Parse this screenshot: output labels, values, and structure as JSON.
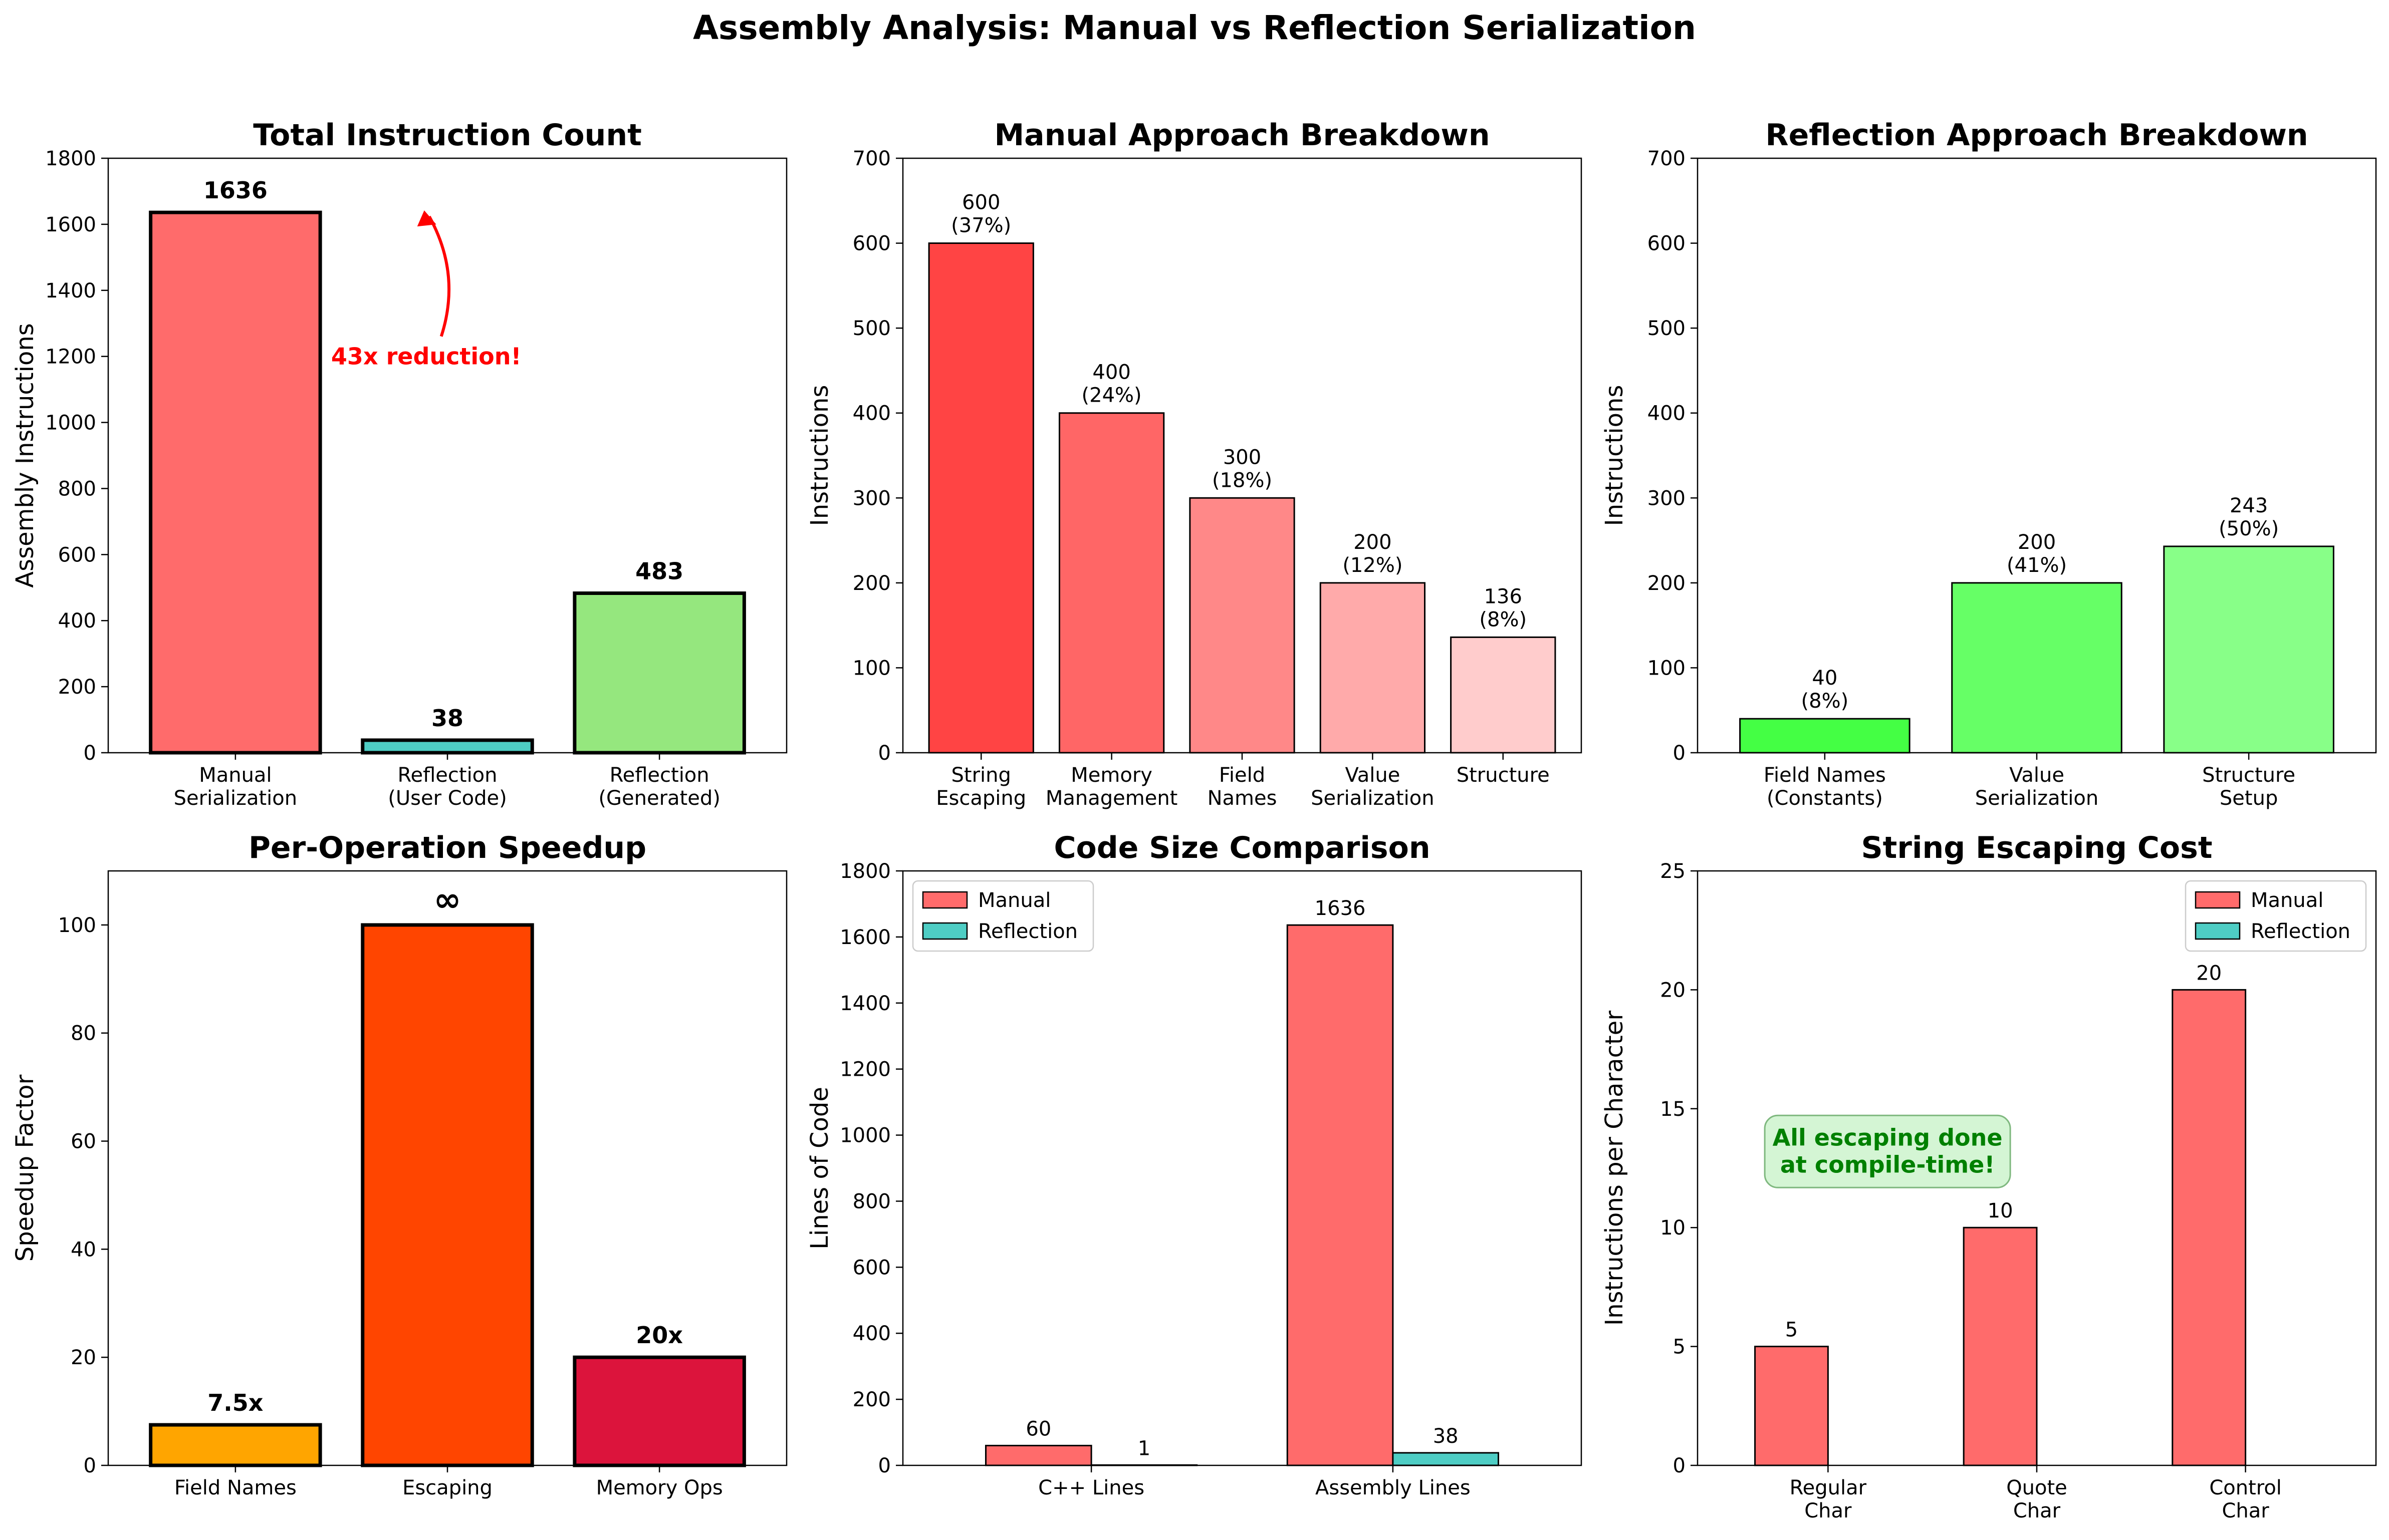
{
  "suptitle": "Assembly Analysis: Manual vs Reflection Serialization",
  "chart_data": [
    {
      "id": "total",
      "type": "bar",
      "title": "Total Instruction Count",
      "ylabel": "Assembly Instructions",
      "ylim": [
        0,
        1800
      ],
      "yticks": [
        0,
        200,
        400,
        600,
        800,
        1000,
        1200,
        1400,
        1600,
        1800
      ],
      "categories": [
        [
          "Manual",
          "Serialization"
        ],
        [
          "Reflection",
          "(User Code)"
        ],
        [
          "Reflection",
          "(Generated)"
        ]
      ],
      "values": [
        1636,
        38,
        483
      ],
      "labels": [
        [
          "1636"
        ],
        [
          "38"
        ],
        [
          "483"
        ]
      ],
      "label_style": "bold",
      "colors": [
        "#ff6b6b",
        "#4ecdc4",
        "#95e77e"
      ],
      "thick_edge": true,
      "annotation": {
        "text": "43x reduction!",
        "color": "#ff0000",
        "xy": [
          0.9,
          1636
        ],
        "xytext": [
          0.9,
          1200
        ]
      }
    },
    {
      "id": "manual",
      "type": "bar",
      "title": "Manual Approach Breakdown",
      "ylabel": "Instructions",
      "ylim": [
        0,
        700
      ],
      "yticks": [
        0,
        100,
        200,
        300,
        400,
        500,
        600,
        700
      ],
      "categories": [
        [
          "String",
          "Escaping"
        ],
        [
          "Memory",
          "Management"
        ],
        [
          "Field",
          "Names"
        ],
        [
          "Value",
          "Serialization"
        ],
        [
          "Structure"
        ]
      ],
      "values": [
        600,
        400,
        300,
        200,
        136
      ],
      "labels": [
        [
          "600",
          "(37%)"
        ],
        [
          "400",
          "(24%)"
        ],
        [
          "300",
          "(18%)"
        ],
        [
          "200",
          "(12%)"
        ],
        [
          "136",
          "(8%)"
        ]
      ],
      "label_style": "normal",
      "colors": [
        "#ff4444",
        "#ff6666",
        "#ff8888",
        "#ffaaaa",
        "#ffcccc"
      ],
      "thick_edge": false
    },
    {
      "id": "reflection",
      "type": "bar",
      "title": "Reflection Approach Breakdown",
      "ylabel": "Instructions",
      "ylim": [
        0,
        700
      ],
      "yticks": [
        0,
        100,
        200,
        300,
        400,
        500,
        600,
        700
      ],
      "categories": [
        [
          "Field Names",
          "(Constants)"
        ],
        [
          "Value",
          "Serialization"
        ],
        [
          "Structure",
          "Setup"
        ]
      ],
      "values": [
        40,
        200,
        243
      ],
      "labels": [
        [
          "40",
          "(8%)"
        ],
        [
          "200",
          "(41%)"
        ],
        [
          "243",
          "(50%)"
        ]
      ],
      "label_style": "normal",
      "colors": [
        "#44ff44",
        "#66ff66",
        "#88ff88"
      ],
      "thick_edge": false
    },
    {
      "id": "speedup",
      "type": "bar",
      "title": "Per-Operation Speedup",
      "ylabel": "Speedup Factor",
      "ylim": [
        0,
        110
      ],
      "yticks": [
        0,
        20,
        40,
        60,
        80,
        100
      ],
      "categories": [
        [
          "Field Names"
        ],
        [
          "Escaping"
        ],
        [
          "Memory Ops"
        ]
      ],
      "values": [
        7.5,
        100,
        20
      ],
      "labels": [
        [
          "7.5x"
        ],
        [
          "∞"
        ],
        [
          "20x"
        ]
      ],
      "label_style": "bold",
      "colors": [
        "#ffa500",
        "#ff4500",
        "#dc143c"
      ],
      "thick_edge": true
    },
    {
      "id": "codesize",
      "type": "bar",
      "title": "Code Size Comparison",
      "ylabel": "Lines of Code",
      "ylim": [
        0,
        1800
      ],
      "yticks": [
        0,
        200,
        400,
        600,
        800,
        1000,
        1200,
        1400,
        1600,
        1800
      ],
      "categories": [
        [
          "C++ Lines"
        ],
        [
          "Assembly Lines"
        ]
      ],
      "series": [
        {
          "name": "Manual",
          "values": [
            60,
            1636
          ],
          "color": "#ff6b6b"
        },
        {
          "name": "Reflection",
          "values": [
            1,
            38
          ],
          "color": "#4ecdc4"
        }
      ],
      "legend": "top-left"
    },
    {
      "id": "escaping",
      "type": "bar",
      "title": "String Escaping Cost",
      "ylabel": "Instructions per Character",
      "ylim": [
        0,
        25
      ],
      "yticks": [
        0,
        5,
        10,
        15,
        20,
        25
      ],
      "categories": [
        [
          "Regular",
          "Char"
        ],
        [
          "Quote",
          "Char"
        ],
        [
          "Control",
          "Char"
        ]
      ],
      "series": [
        {
          "name": "Manual",
          "values": [
            5,
            10,
            20
          ],
          "color": "#ff6b6b"
        },
        {
          "name": "Reflection",
          "values": [
            0,
            0,
            0
          ],
          "color": "#4ecdc4"
        }
      ],
      "legend": "top-right",
      "note": [
        "All escaping done",
        "at compile-time!"
      ]
    }
  ]
}
